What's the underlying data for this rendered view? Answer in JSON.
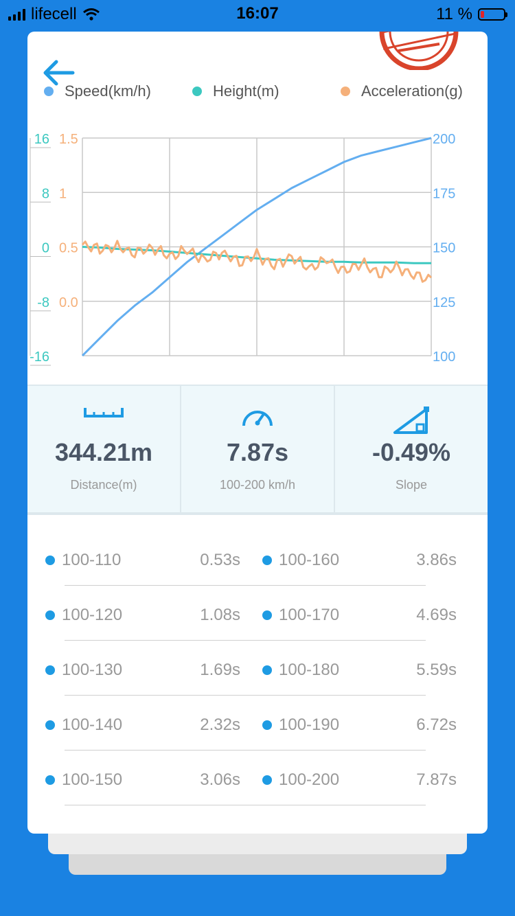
{
  "status_bar": {
    "carrier": "lifecell",
    "time": "16:07",
    "battery_text": "11 %"
  },
  "legend": [
    {
      "label": "Speed(km/h)",
      "color": "#63aef0"
    },
    {
      "label": "Height(m)",
      "color": "#3cc8c0"
    },
    {
      "label": "Acceleration(g)",
      "color": "#f5b07a"
    }
  ],
  "chart_data": {
    "type": "line",
    "x": [
      0,
      1,
      2,
      3,
      4,
      5,
      6,
      7,
      8,
      9,
      10,
      11,
      12,
      13,
      14,
      15,
      16,
      17,
      18,
      19,
      20
    ],
    "series": [
      {
        "name": "Speed(km/h)",
        "axis": "right",
        "color": "#63aef0",
        "values": [
          100,
          108,
          116,
          123,
          129,
          136,
          143,
          149,
          155,
          161,
          167,
          172,
          177,
          181,
          185,
          189,
          192,
          194,
          196,
          198,
          200
        ]
      },
      {
        "name": "Height(m)",
        "axis": "left-height",
        "color": "#3cc8c0",
        "values": [
          0.0,
          -0.1,
          -0.3,
          -0.4,
          -0.5,
          -0.7,
          -0.9,
          -1.1,
          -1.3,
          -1.5,
          -1.7,
          -1.9,
          -2.0,
          -2.1,
          -2.2,
          -2.2,
          -2.3,
          -2.3,
          -2.3,
          -2.4,
          -2.4
        ]
      },
      {
        "name": "Acceleration(g)",
        "axis": "left-accel",
        "color": "#f5b07a",
        "values": [
          0.52,
          0.48,
          0.5,
          0.44,
          0.49,
          0.41,
          0.47,
          0.38,
          0.45,
          0.36,
          0.43,
          0.33,
          0.41,
          0.3,
          0.38,
          0.27,
          0.35,
          0.25,
          0.32,
          0.24,
          0.21
        ]
      }
    ],
    "axes": {
      "height_ticks": [
        "16",
        "8",
        "0",
        "-8",
        "-16"
      ],
      "height_range": [
        -16,
        16
      ],
      "accel_ticks": [
        "1.5",
        "1",
        "0.5",
        "0.0"
      ],
      "accel_range": [
        -0.5,
        1.5
      ],
      "speed_ticks": [
        "200",
        "175",
        "150",
        "125",
        "100"
      ],
      "speed_range": [
        100,
        200
      ]
    },
    "grid": true,
    "colors": {
      "height_axis": "#3cc8c0",
      "accel_axis": "#f5b07a",
      "speed_axis": "#63aef0",
      "grid": "#c8c8c8"
    }
  },
  "stats": [
    {
      "icon": "ruler-icon",
      "value": "344.21m",
      "label": "Distance(m)"
    },
    {
      "icon": "speedometer-icon",
      "value": "7.87s",
      "label": "100-200 km/h"
    },
    {
      "icon": "slope-icon",
      "value": "-0.49%",
      "label": "Slope"
    }
  ],
  "splits": [
    {
      "range": "100-110",
      "time": "0.53s",
      "range2": "100-160",
      "time2": "3.86s"
    },
    {
      "range": "100-120",
      "time": "1.08s",
      "range2": "100-170",
      "time2": "4.69s"
    },
    {
      "range": "100-130",
      "time": "1.69s",
      "range2": "100-180",
      "time2": "5.59s"
    },
    {
      "range": "100-140",
      "time": "2.32s",
      "range2": "100-190",
      "time2": "6.72s"
    },
    {
      "range": "100-150",
      "time": "3.06s",
      "range2": "100-200",
      "time2": "7.87s"
    }
  ],
  "colors": {
    "background": "#1a82e2",
    "accent": "#1e9be3",
    "stamp": "#d9442b"
  }
}
